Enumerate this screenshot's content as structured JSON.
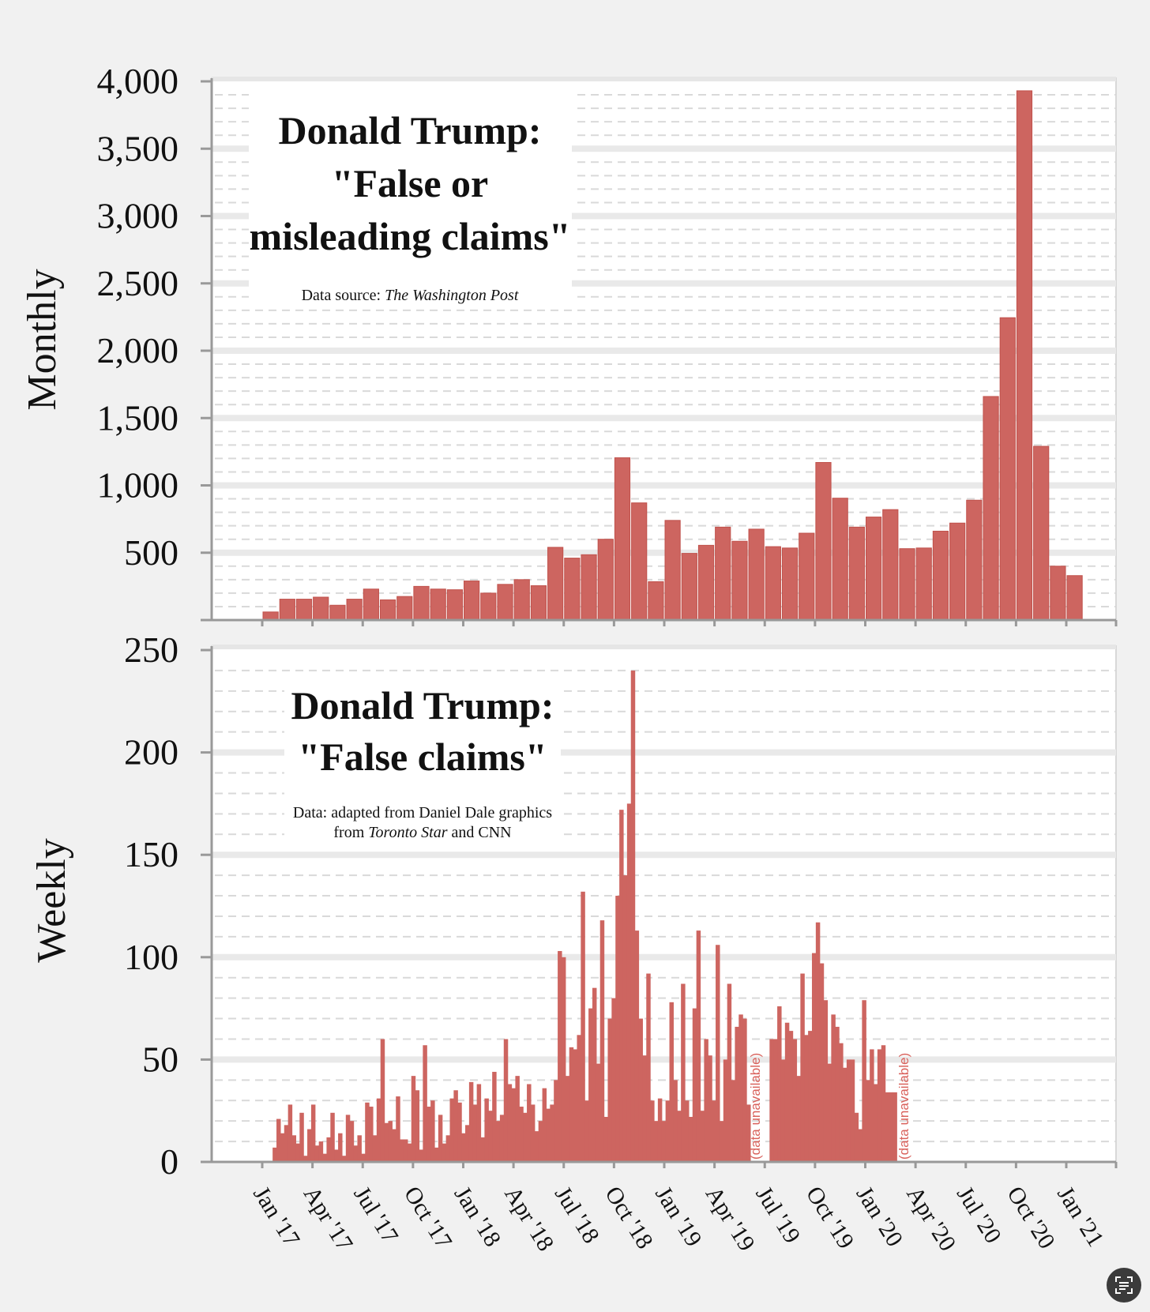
{
  "chart_data": [
    {
      "type": "bar",
      "id": "monthly",
      "ylabel": "Monthly",
      "title_lines": [
        "Donald Trump:",
        "\"False or",
        "misleading claims\""
      ],
      "source_prefix": "Data source: ",
      "source_italic": "The Washington Post",
      "ylim": [
        0,
        4000
      ],
      "yticks": [
        4000,
        3500,
        3000,
        2500,
        2000,
        1500,
        1000,
        500
      ],
      "ytick_labels": [
        "4,000",
        "3,500",
        "3,000",
        "2,500",
        "2,000",
        "1,500",
        "1,000",
        "500"
      ],
      "start_month": "Jan 2017",
      "values": [
        60,
        155,
        155,
        170,
        110,
        155,
        230,
        150,
        175,
        250,
        230,
        225,
        290,
        200,
        265,
        300,
        255,
        540,
        460,
        485,
        600,
        1205,
        870,
        285,
        740,
        495,
        555,
        690,
        585,
        675,
        545,
        535,
        645,
        1170,
        905,
        690,
        765,
        820,
        530,
        535,
        660,
        720,
        890,
        1660,
        2245,
        3930,
        1290,
        400,
        330
      ],
      "color": "#cd6560"
    },
    {
      "type": "bar",
      "id": "weekly",
      "ylabel": "Weekly",
      "title_lines": [
        "Donald Trump:",
        "\"False claims\""
      ],
      "source_line1": "Data: adapted from Daniel Dale graphics",
      "source_line2_prefix": "from ",
      "source_line2_italic": "Toronto Star",
      "source_line2_suffix": " and CNN",
      "ylim": [
        0,
        250
      ],
      "yticks": [
        250,
        200,
        150,
        100,
        50,
        0
      ],
      "ytick_labels": [
        "250",
        "200",
        "150",
        "100",
        "50",
        "0"
      ],
      "start_week": "Jan 20 2017",
      "values": [
        7,
        21,
        14,
        18,
        28,
        13,
        9,
        24,
        3,
        16,
        28,
        8,
        10,
        4,
        12,
        24,
        6,
        14,
        3,
        23,
        20,
        8,
        13,
        4,
        29,
        27,
        13,
        31,
        60,
        19,
        20,
        16,
        32,
        11,
        11,
        9,
        42,
        35,
        6,
        57,
        27,
        30,
        7,
        23,
        9,
        13,
        31,
        35,
        29,
        14,
        18,
        39,
        28,
        38,
        12,
        31,
        25,
        44,
        20,
        23,
        60,
        38,
        36,
        42,
        27,
        24,
        38,
        28,
        15,
        20,
        36,
        26,
        28,
        40,
        103,
        100,
        42,
        56,
        55,
        62,
        132,
        30,
        75,
        85,
        48,
        118,
        22,
        70,
        80,
        130,
        172,
        140,
        175,
        240,
        113,
        70,
        52,
        92,
        30,
        20,
        31,
        20,
        30,
        78,
        40,
        25,
        87,
        30,
        22,
        75,
        113,
        25,
        60,
        52,
        30,
        106,
        20,
        50,
        87,
        40,
        66,
        72,
        70,
        28,
        null,
        null,
        null,
        null,
        null,
        60,
        60,
        76,
        50,
        68,
        64,
        60,
        42,
        92,
        62,
        64,
        102,
        117,
        97,
        79,
        48,
        72,
        66,
        58,
        46,
        50,
        50,
        24,
        16,
        79,
        40,
        55,
        38,
        55,
        57,
        34,
        34,
        34
      ],
      "annotations": [
        "(data unavailable)",
        "(data unavailable)"
      ],
      "color": "#cd6560"
    }
  ],
  "xtick_labels": [
    "Jan '17",
    "Apr '17",
    "Jul '17",
    "Oct '17",
    "Jan '18",
    "Apr '18",
    "Jul '18",
    "Oct '18",
    "Jan '19",
    "Apr '19",
    "Jul '19",
    "Oct '19",
    "Jan '20",
    "Apr '20",
    "Jul '20",
    "Oct '20",
    "Jan '21"
  ],
  "icons": {
    "corner": "text-scan-icon"
  }
}
